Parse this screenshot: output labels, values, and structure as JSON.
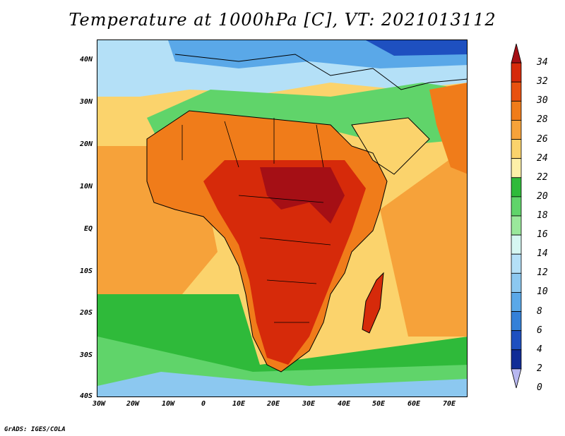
{
  "title": "Temperature at 1000hPa [C], VT: 2021013112",
  "credit": "GrADS: IGES/COLA",
  "lat_labels": [
    "40N",
    "30N",
    "20N",
    "10N",
    "EQ",
    "10S",
    "20S",
    "30S",
    "40S"
  ],
  "lon_labels": [
    "30W",
    "20W",
    "10W",
    "0",
    "10E",
    "20E",
    "30E",
    "40E",
    "50E",
    "60E",
    "70E"
  ],
  "colorbar": {
    "labels": [
      "34",
      "32",
      "30",
      "28",
      "26",
      "24",
      "22",
      "20",
      "18",
      "16",
      "14",
      "12",
      "10",
      "8",
      "6",
      "4",
      "2",
      "0"
    ],
    "colors": [
      "#a50f15",
      "#d62a0a",
      "#e8510f",
      "#f07c1a",
      "#f6a23a",
      "#fbd36c",
      "#fdf0a8",
      "#2fba3a",
      "#60d46a",
      "#9ae89b",
      "#d6f7f2",
      "#b4e0f7",
      "#8cc8f0",
      "#5aa8e8",
      "#3480d8",
      "#1e50c0",
      "#102c96",
      "#b7b7f0"
    ]
  },
  "map": {
    "colors": {
      "ocean_cold": "#9ae89b",
      "ocean_warm": "#f6a23a",
      "land_hot": "#d62a0a",
      "north_cold": "#5aa8e8"
    }
  }
}
